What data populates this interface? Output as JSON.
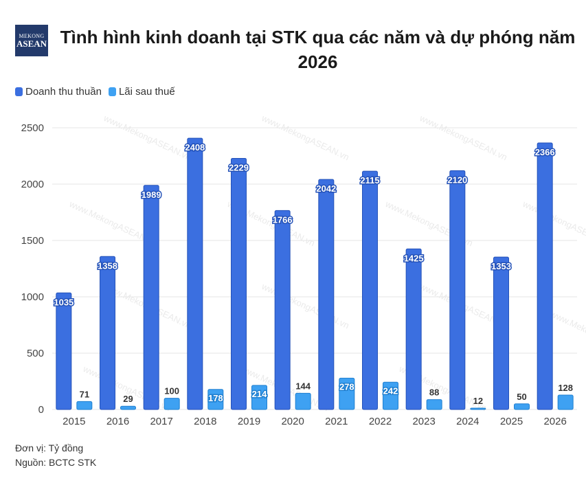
{
  "header": {
    "logo_line1": "MEKONG",
    "logo_line2": "ASEAN",
    "title": "Tình hình kinh doanh tại STK qua các năm và dự phóng năm 2026"
  },
  "footer": {
    "unit": "Đơn vị: Tỷ đồng",
    "source": "Nguồn: BCTC STK"
  },
  "watermark": "www.MekongASEAN.vn",
  "colors": {
    "revenue": "#3b6fe0",
    "revenue_stroke": "#2452b8",
    "profit": "#3ea1f2",
    "profit_stroke": "#1f7fd0",
    "grid": "#e6e6e6",
    "axis_text": "#444444"
  },
  "chart_data": {
    "type": "bar",
    "categories": [
      "2015",
      "2016",
      "2017",
      "2018",
      "2019",
      "2020",
      "2021",
      "2022",
      "2023",
      "2024",
      "2025",
      "2026"
    ],
    "series": [
      {
        "name": "Doanh thu thuần",
        "values": [
          1035,
          1358,
          1989,
          2408,
          2229,
          1766,
          2042,
          2115,
          1425,
          2120,
          1353,
          2366
        ]
      },
      {
        "name": "Lãi sau thuế",
        "values": [
          71,
          29,
          100,
          178,
          214,
          144,
          278,
          242,
          88,
          12,
          50,
          128
        ]
      }
    ],
    "yticks": [
      0,
      500,
      1000,
      1500,
      2000,
      2500
    ],
    "ylim": [
      0,
      2600
    ],
    "grid": true,
    "legend_position": "top-left"
  }
}
